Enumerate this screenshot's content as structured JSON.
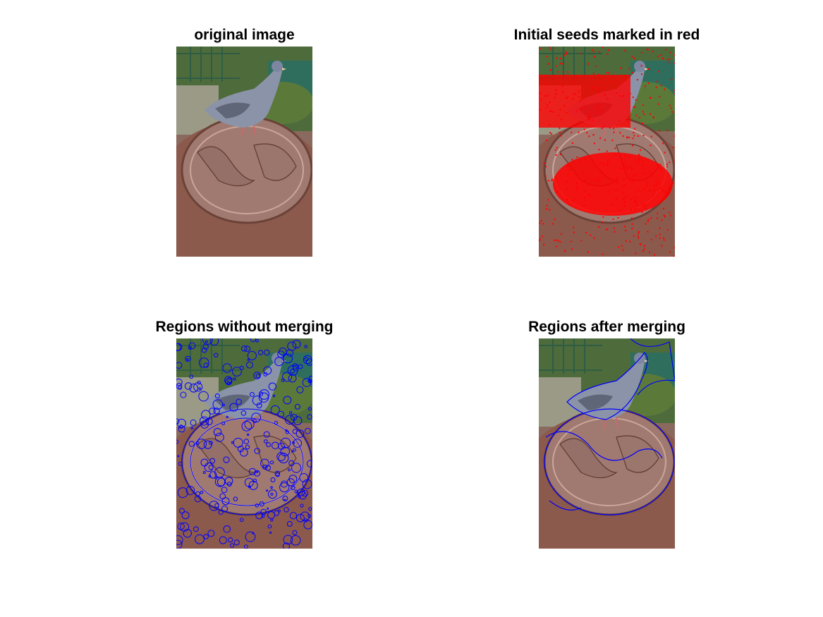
{
  "figure": {
    "panels": [
      {
        "title": "original image",
        "image_desc": "pigeon on globe sculpture",
        "overlay": "none"
      },
      {
        "title": "Initial seeds marked in red",
        "overlay": "red seeds",
        "overlay_color": "#ff0000"
      },
      {
        "title": "Regions without merging",
        "overlay": "blue region boundaries",
        "overlay_color": "#0000ff"
      },
      {
        "title": "Regions after merging",
        "overlay": "blue region boundaries",
        "overlay_color": "#0000ff"
      }
    ]
  },
  "colors": {
    "seed": "#ff0000",
    "boundary": "#0000ff",
    "background": "#ffffff"
  }
}
